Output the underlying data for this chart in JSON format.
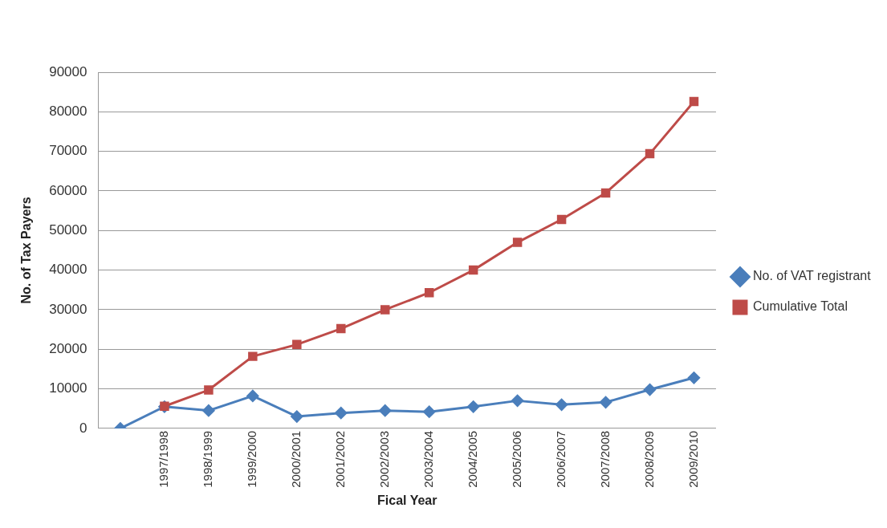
{
  "chart_data": {
    "type": "line",
    "xlabel": "Fical Year",
    "ylabel": "No. of Tax Payers",
    "categories": [
      null,
      "1997/1998",
      "1998/1999",
      "1999/2000",
      "2000/2001",
      "2001/2002",
      "2002/2003",
      "2003/2004",
      "2004/2005",
      "2005/2006",
      "2006/2007",
      "2007/2008",
      "2008/2009",
      "2009/2010"
    ],
    "series": [
      {
        "name": "No. of VAT registrant",
        "color": "#4a7ebb",
        "marker": "diamond",
        "values": [
          0,
          5500,
          4500,
          8200,
          3000,
          3900,
          4500,
          4200,
          5500,
          7000,
          6000,
          6600,
          9800,
          12800
        ]
      },
      {
        "name": "Cumulative Total",
        "color": "#be4b48",
        "marker": "square",
        "values": [
          null,
          5600,
          9700,
          18200,
          21200,
          25200,
          30000,
          34300,
          40000,
          47000,
          52800,
          59500,
          69400,
          82600
        ]
      }
    ],
    "ylim": [
      0,
      90000
    ],
    "yticks": [
      0,
      10000,
      20000,
      30000,
      40000,
      50000,
      60000,
      70000,
      80000,
      90000
    ],
    "grid": "y",
    "legend": "right"
  }
}
